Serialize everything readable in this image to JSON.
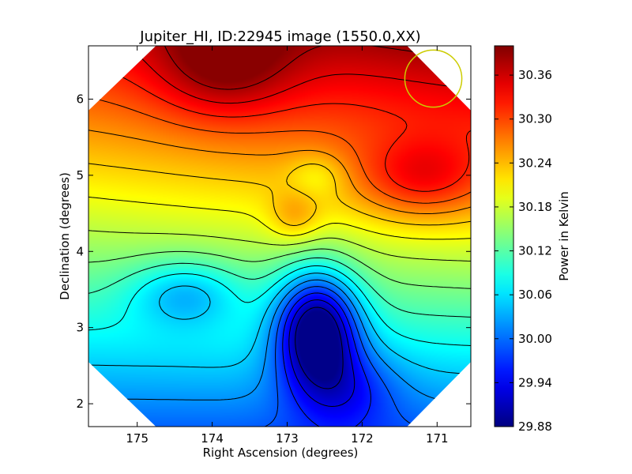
{
  "chart_data": {
    "type": "heatmap",
    "title": "Jupiter_HI, ID:22945 image (1550.0,XX)",
    "xlabel": "Right Ascension (degrees)",
    "ylabel": "Declination (degrees)",
    "colorbar_label": "Power in Kelvin",
    "colormap": "jet",
    "xlim": [
      175.65,
      170.55
    ],
    "ylim": [
      1.7,
      6.7
    ],
    "x_ticks": [
      175,
      174,
      173,
      172,
      171
    ],
    "x_tick_labels": [
      "175",
      "174",
      "173",
      "172",
      "171"
    ],
    "y_ticks": [
      2,
      3,
      4,
      5,
      6
    ],
    "y_tick_labels": [
      "2",
      "3",
      "4",
      "5",
      "6"
    ],
    "colorbar_range": [
      29.88,
      30.4
    ],
    "colorbar_ticks": [
      29.88,
      29.94,
      30.0,
      30.06,
      30.12,
      30.18,
      30.24,
      30.3,
      30.36
    ],
    "colorbar_tick_labels": [
      "29.88",
      "29.94",
      "30.00",
      "30.06",
      "30.12",
      "30.18",
      "30.24",
      "30.30",
      "30.36"
    ],
    "features": [
      {
        "kind": "maximum",
        "ra": 173.85,
        "dec": 6.45,
        "value": 30.4
      },
      {
        "kind": "maximum",
        "ra": 171.2,
        "dec": 4.95,
        "value": 30.38
      },
      {
        "kind": "minimum",
        "ra": 172.6,
        "dec": 3.0,
        "value": 29.88
      },
      {
        "kind": "local-low",
        "ra": 174.35,
        "dec": 3.45,
        "value": 30.06
      }
    ],
    "contour_levels": [
      29.9,
      29.93,
      29.96,
      29.99,
      30.02,
      30.05,
      30.08,
      30.11,
      30.14,
      30.17,
      30.2,
      30.23,
      30.26,
      30.29,
      30.32,
      30.35,
      30.38
    ],
    "beam_marker": {
      "shape": "circle",
      "color": "#cccc00",
      "ra": 171.05,
      "dec": 6.27,
      "radius_deg": 0.38
    },
    "grid": false
  }
}
